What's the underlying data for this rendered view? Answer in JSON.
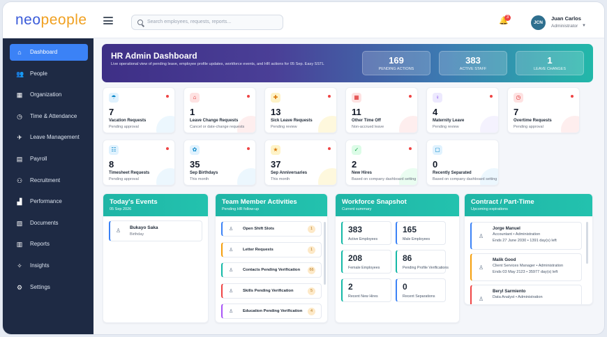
{
  "app": {
    "logo_a": "neo",
    "logo_b": "people"
  },
  "search": {
    "placeholder": "Search employees, requests, reports..."
  },
  "notifications": {
    "count": "3"
  },
  "user": {
    "initials": "JCN",
    "name": "Juan Carlos",
    "role": "Administrator"
  },
  "sidebar": {
    "items": [
      {
        "label": "Dashboard",
        "icon": "home-icon",
        "glyph": "⌂"
      },
      {
        "label": "People",
        "icon": "people-icon",
        "glyph": "👥"
      },
      {
        "label": "Organization",
        "icon": "org-icon",
        "glyph": "▦"
      },
      {
        "label": "Time & Attendance",
        "icon": "clock-icon",
        "glyph": "◷"
      },
      {
        "label": "Leave Management",
        "icon": "leave-icon",
        "glyph": "✈"
      },
      {
        "label": "Payroll",
        "icon": "payroll-icon",
        "glyph": "▤"
      },
      {
        "label": "Recruitment",
        "icon": "recruit-icon",
        "glyph": "⚇"
      },
      {
        "label": "Performance",
        "icon": "chart-icon",
        "glyph": "▟"
      },
      {
        "label": "Documents",
        "icon": "document-icon",
        "glyph": "▧"
      },
      {
        "label": "Reports",
        "icon": "reports-icon",
        "glyph": "▥"
      },
      {
        "label": "Insights",
        "icon": "insights-icon",
        "glyph": "✧"
      },
      {
        "label": "Settings",
        "icon": "gear-icon",
        "glyph": "⚙"
      }
    ]
  },
  "hero": {
    "title": "HR Admin Dashboard",
    "description": "Live operational view of pending leave, employee profile updates, workforce events, and HR actions for 05 Sep. Easy SSTL",
    "stats": [
      {
        "value": "169",
        "label": "PENDING ACTIONS"
      },
      {
        "value": "383",
        "label": "ACTIVE STAFF"
      },
      {
        "value": "1",
        "label": "LEAVE CHANGES"
      }
    ]
  },
  "cards": [
    {
      "value": "7",
      "name": "Vacation Requests",
      "sub": "Pending approval",
      "icon": "umbrella-icon",
      "glyph": "☂",
      "bg": "#e0f2fe",
      "fg": "#0284c7",
      "dot": true
    },
    {
      "value": "1",
      "name": "Leave Change Requests",
      "sub": "Cancel or date-change requests",
      "icon": "home-change-icon",
      "glyph": "⌂",
      "bg": "#fee2e2",
      "fg": "#dc2626",
      "dot": true
    },
    {
      "value": "13",
      "name": "Sick Leave Requests",
      "sub": "Pending review",
      "icon": "medical-icon",
      "glyph": "✚",
      "bg": "#fef3c7",
      "fg": "#d97706",
      "dot": true
    },
    {
      "value": "11",
      "name": "Other Time Off",
      "sub": "Non-accrued leave",
      "icon": "calendar-icon",
      "glyph": "▦",
      "bg": "#fee2e2",
      "fg": "#dc2626",
      "dot": true
    },
    {
      "value": "4",
      "name": "Maternity Leave",
      "sub": "Pending review",
      "icon": "maternity-icon",
      "glyph": "♀",
      "bg": "#ede9fe",
      "fg": "#7c3aed",
      "dot": true
    },
    {
      "value": "7",
      "name": "Overtime Requests",
      "sub": "Pending approval",
      "icon": "overtime-icon",
      "glyph": "◷",
      "bg": "#fee2e2",
      "fg": "#dc2626",
      "dot": true
    },
    {
      "value": "8",
      "name": "Timesheet Requests",
      "sub": "Pending approval",
      "icon": "timesheet-icon",
      "glyph": "☷",
      "bg": "#e0f2fe",
      "fg": "#0284c7",
      "dot": true
    },
    {
      "value": "35",
      "name": "Sep Birthdays",
      "sub": "This month",
      "icon": "birthday-icon",
      "glyph": "✿",
      "bg": "#e0f2fe",
      "fg": "#0284c7",
      "dot": true
    },
    {
      "value": "37",
      "name": "Sep Anniversaries",
      "sub": "This month",
      "icon": "anniversary-icon",
      "glyph": "★",
      "bg": "#fef3c7",
      "fg": "#d97706",
      "dot": true
    },
    {
      "value": "2",
      "name": "New Hires",
      "sub": "Based on company dashboard setting",
      "icon": "new-hire-icon",
      "glyph": "✓",
      "bg": "#dcfce7",
      "fg": "#16a34a",
      "dot": true
    },
    {
      "value": "0",
      "name": "Recently Separated",
      "sub": "Based on company dashboard setting",
      "icon": "separated-icon",
      "glyph": "▢",
      "bg": "#e0f2fe",
      "fg": "#0284c7",
      "dot": false
    }
  ],
  "events": {
    "title": "Today's Events",
    "date": "05 Sep 2026",
    "items": [
      {
        "name": "Bukayo Saka",
        "type": "Birthday"
      }
    ]
  },
  "activities": {
    "title": "Team Member Activities",
    "subtitle": "Pending HR follow-up",
    "items": [
      {
        "label": "Open Shift Slots",
        "count": "1",
        "color": "#3b82f6"
      },
      {
        "label": "Letter Requests",
        "count": "1",
        "color": "#f59e0b"
      },
      {
        "label": "Contacts Pending Verification",
        "count": "66",
        "color": "#14b8a6"
      },
      {
        "label": "Skills Pending Verification",
        "count": "5",
        "color": "#ef4444"
      },
      {
        "label": "Education Pending Verification",
        "count": "4",
        "color": "#a855f7"
      }
    ]
  },
  "workforce": {
    "title": "Workforce Snapshot",
    "subtitle": "Current summary",
    "items": [
      {
        "value": "383",
        "label": "Active Employees",
        "color": "#14b8a6"
      },
      {
        "value": "165",
        "label": "Male Employees",
        "color": "#3b82f6"
      },
      {
        "value": "208",
        "label": "Female Employees",
        "color": "#14b8a6"
      },
      {
        "value": "86",
        "label": "Pending Profile Verifications",
        "color": "#14b8a6"
      },
      {
        "value": "2",
        "label": "Recent New Hires",
        "color": "#14b8a6"
      },
      {
        "value": "0",
        "label": "Recent Separations",
        "color": "#3b82f6"
      }
    ]
  },
  "contracts": {
    "title": "Contract / Part-Time",
    "subtitle": "Upcoming expirations",
    "items": [
      {
        "name": "Jorge Manuel",
        "role": "Accountant • Administration",
        "ends": "Ends 27 June 2030 • 1391 day(s) left",
        "color": "#3b82f6"
      },
      {
        "name": "Malik Good",
        "role": "Client Services Manager • Administration",
        "ends": "Ends 03 May 2123 • 35977 day(s) left",
        "color": "#f59e0b"
      },
      {
        "name": "Beryl Sarmiento",
        "role": "Data Analyst • Administration",
        "ends": "",
        "color": "#ef4444"
      }
    ]
  }
}
